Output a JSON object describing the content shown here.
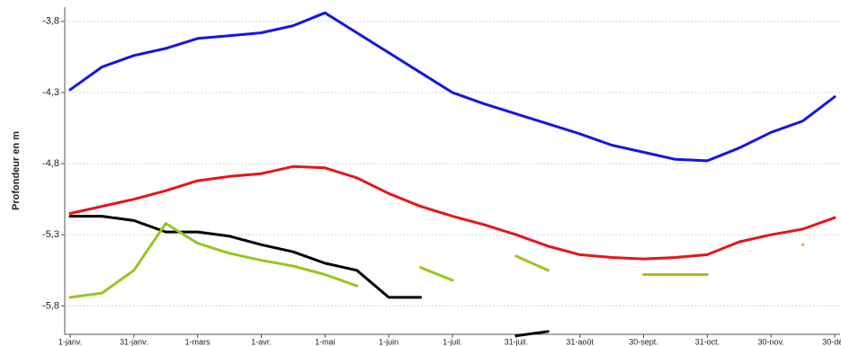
{
  "chart_data": {
    "type": "line",
    "y_label": "Profondeur en m",
    "categories": [
      "1-janv.",
      null,
      "31-janv.",
      null,
      "1-mars",
      null,
      "1-avr.",
      null,
      "1-mai",
      null,
      "1-juin",
      null,
      "1-juil.",
      null,
      "31-juil.",
      null,
      "31-août",
      null,
      "30-sept.",
      null,
      "31-oct.",
      null,
      "30-nov.",
      null,
      "30-déc"
    ],
    "series": [
      {
        "color": "#1515e6",
        "values": [
          -4.28,
          -4.12,
          -4.04,
          -3.99,
          -3.92,
          -3.9,
          -3.88,
          -3.83,
          -3.74,
          -3.88,
          -4.02,
          -4.16,
          -4.3,
          -4.38,
          -4.45,
          -4.52,
          -4.59,
          -4.67,
          -4.72,
          -4.77,
          -4.78,
          -4.69,
          -4.58,
          -4.5,
          -4.33
        ]
      },
      {
        "color": "#e81515",
        "values": [
          -5.15,
          -5.1,
          -5.05,
          -4.99,
          -4.92,
          -4.89,
          -4.87,
          -4.82,
          -4.83,
          -4.9,
          -5.01,
          -5.1,
          -5.17,
          -5.23,
          -5.3,
          -5.38,
          -5.44,
          -5.46,
          -5.47,
          -5.46,
          -5.44,
          -5.35,
          -5.3,
          -5.26,
          -5.18
        ]
      },
      {
        "color": "#000000",
        "values": [
          -5.17,
          -5.17,
          -5.2,
          -5.28,
          -5.28,
          -5.31,
          -5.37,
          -5.42,
          -5.5,
          -5.55,
          -5.74,
          -5.74,
          null,
          null,
          -6.01,
          -5.98,
          null,
          null,
          null,
          null,
          null,
          null,
          null,
          null,
          null
        ]
      },
      {
        "color": "#99c51f",
        "values": [
          -5.74,
          -5.71,
          -5.55,
          -5.22,
          -5.36,
          -5.43,
          -5.48,
          -5.52,
          -5.58,
          -5.66,
          null,
          -5.53,
          -5.62,
          null,
          -5.45,
          -5.55,
          null,
          null,
          -5.58,
          -5.58,
          -5.58,
          null,
          null,
          -5.37,
          null
        ]
      }
    ],
    "ylim": [
      -6.0,
      -3.7
    ],
    "yticks": [
      {
        "value": -3.8,
        "label": "-3,8"
      },
      {
        "value": -4.3,
        "label": "-4,3"
      },
      {
        "value": -4.8,
        "label": "-4,8"
      },
      {
        "value": -5.3,
        "label": "-5,3"
      },
      {
        "value": -5.8,
        "label": "-5,8"
      }
    ],
    "grid": true
  }
}
